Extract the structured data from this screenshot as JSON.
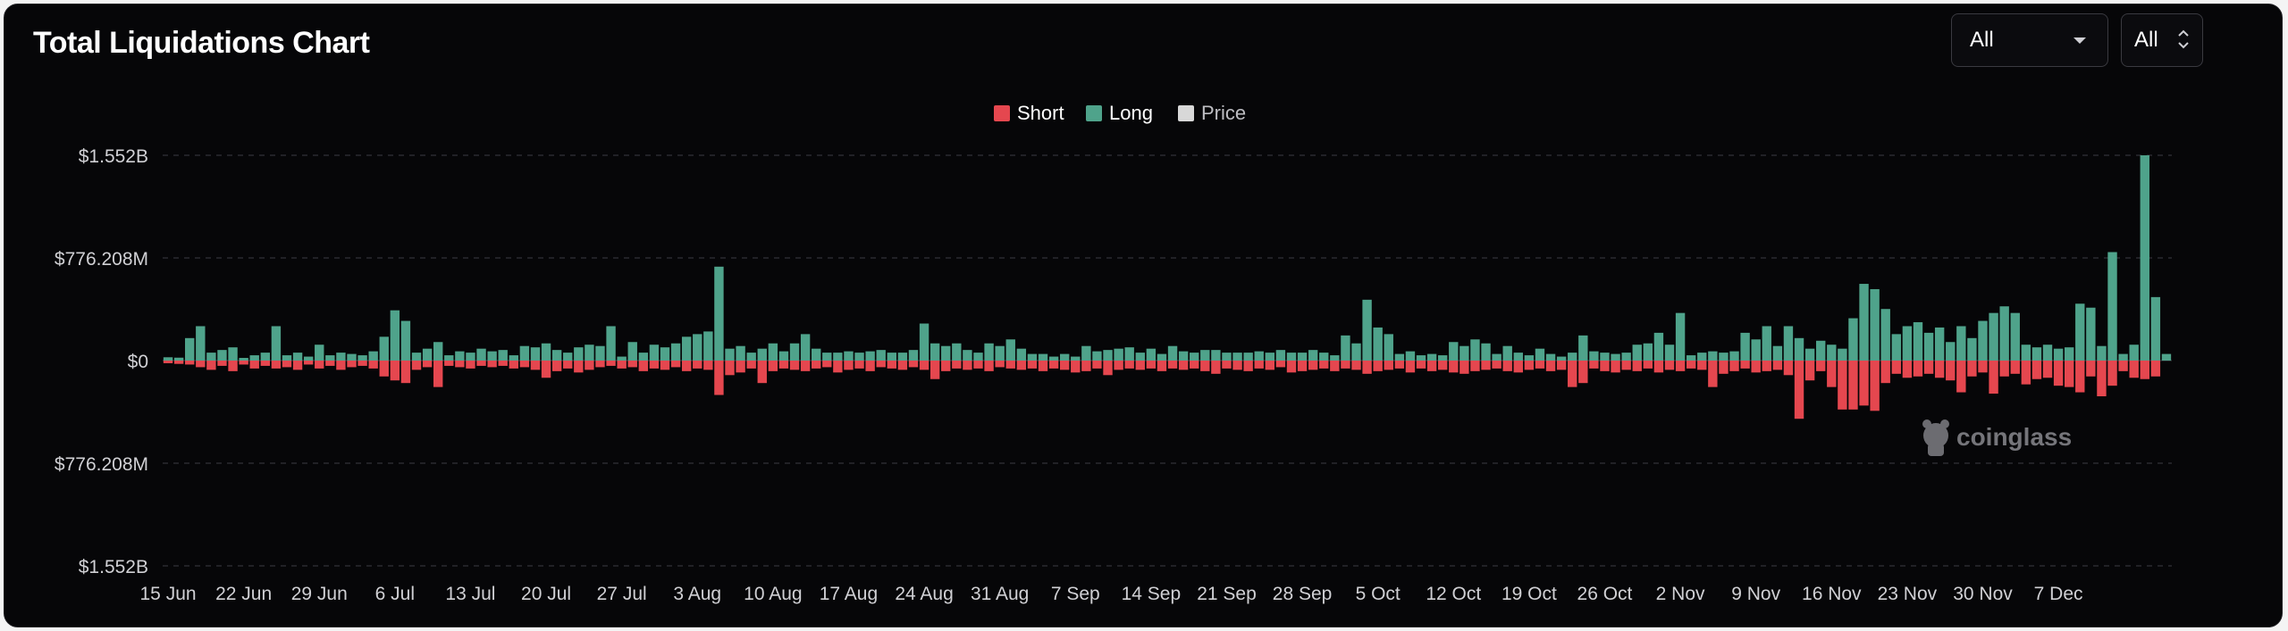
{
  "header": {
    "title": "Total Liquidations Chart"
  },
  "controls": {
    "range_select": {
      "value": "All",
      "icon": "chevron-down-icon"
    },
    "interval_select": {
      "value": "All",
      "icon": "up-down-chevron-icon"
    }
  },
  "watermark": {
    "text": "coinglass",
    "icon": "coinglass-logo-icon"
  },
  "colors": {
    "short": "#e5474f",
    "long": "#4fa38b",
    "price": "#d8d8d8",
    "background": "#060608"
  },
  "chart_data": {
    "type": "bar",
    "title": "Total Liquidations Chart",
    "legend": {
      "placement": "top-center",
      "entries": [
        "Short",
        "Long",
        "Price"
      ]
    },
    "grid": true,
    "y_unit": "USD",
    "ylim": [
      -1552000000,
      1552000000
    ],
    "y_tick_values": [
      1552000000,
      776208000,
      0,
      -776208000,
      -1552000000
    ],
    "y_tick_labels": [
      "$1.552B",
      "$776.208M",
      "$0",
      "$776.208M",
      "$1.552B"
    ],
    "x_tick_labels": [
      "15 Jun",
      "22 Jun",
      "29 Jun",
      "6 Jul",
      "13 Jul",
      "20 Jul",
      "27 Jul",
      "3 Aug",
      "10 Aug",
      "17 Aug",
      "24 Aug",
      "31 Aug",
      "7 Sep",
      "14 Sep",
      "21 Sep",
      "28 Sep",
      "5 Oct",
      "12 Oct",
      "19 Oct",
      "26 Oct",
      "2 Nov",
      "9 Nov",
      "16 Nov",
      "23 Nov",
      "30 Nov",
      "7 Dec"
    ],
    "x_start": "15 Jun",
    "interval": "1 day",
    "series": [
      {
        "name": "Long",
        "unit": "USD millions",
        "values": [
          25,
          22,
          170,
          260,
          60,
          80,
          100,
          20,
          40,
          60,
          260,
          40,
          60,
          30,
          120,
          40,
          60,
          50,
          40,
          70,
          180,
          380,
          300,
          60,
          90,
          140,
          40,
          70,
          60,
          90,
          70,
          80,
          40,
          110,
          100,
          130,
          80,
          60,
          100,
          120,
          110,
          260,
          30,
          140,
          60,
          120,
          100,
          130,
          180,
          200,
          220,
          710,
          90,
          110,
          60,
          90,
          130,
          70,
          130,
          200,
          90,
          60,
          60,
          70,
          60,
          70,
          80,
          60,
          60,
          80,
          280,
          130,
          110,
          130,
          80,
          60,
          130,
          110,
          160,
          90,
          50,
          50,
          30,
          50,
          30,
          110,
          70,
          80,
          90,
          100,
          60,
          90,
          50,
          110,
          70,
          60,
          80,
          80,
          60,
          60,
          60,
          70,
          60,
          80,
          60,
          60,
          80,
          60,
          40,
          190,
          130,
          460,
          250,
          200,
          50,
          70,
          40,
          50,
          40,
          140,
          110,
          160,
          130,
          50,
          110,
          60,
          40,
          90,
          50,
          30,
          60,
          190,
          70,
          60,
          50,
          60,
          120,
          130,
          210,
          120,
          360,
          40,
          60,
          70,
          60,
          70,
          210,
          160,
          260,
          110,
          260,
          170,
          90,
          150,
          120,
          90,
          320,
          580,
          540,
          390,
          200,
          260,
          290,
          210,
          250,
          140,
          260,
          170,
          300,
          360,
          410,
          360,
          120,
          100,
          120,
          90,
          100,
          430,
          400,
          110,
          820,
          50,
          120,
          1552,
          480,
          50
        ]
      },
      {
        "name": "Short",
        "unit": "USD millions",
        "values": [
          -20,
          -25,
          -30,
          -50,
          -70,
          -40,
          -80,
          -30,
          -60,
          -40,
          -60,
          -50,
          -70,
          -30,
          -60,
          -40,
          -70,
          -50,
          -40,
          -60,
          -120,
          -150,
          -170,
          -70,
          -50,
          -200,
          -40,
          -50,
          -60,
          -40,
          -50,
          -40,
          -60,
          -50,
          -70,
          -130,
          -80,
          -60,
          -90,
          -70,
          -50,
          -40,
          -60,
          -50,
          -80,
          -60,
          -70,
          -50,
          -80,
          -60,
          -70,
          -260,
          -110,
          -90,
          -60,
          -170,
          -80,
          -60,
          -70,
          -80,
          -60,
          -50,
          -90,
          -70,
          -60,
          -80,
          -50,
          -60,
          -70,
          -50,
          -70,
          -140,
          -80,
          -60,
          -70,
          -60,
          -80,
          -50,
          -60,
          -70,
          -60,
          -80,
          -60,
          -70,
          -90,
          -80,
          -60,
          -110,
          -70,
          -60,
          -70,
          -60,
          -80,
          -60,
          -70,
          -60,
          -80,
          -100,
          -60,
          -70,
          -80,
          -60,
          -70,
          -50,
          -90,
          -80,
          -70,
          -60,
          -80,
          -60,
          -70,
          -100,
          -80,
          -70,
          -60,
          -90,
          -60,
          -80,
          -70,
          -90,
          -100,
          -80,
          -70,
          -60,
          -80,
          -90,
          -70,
          -60,
          -80,
          -70,
          -200,
          -170,
          -60,
          -80,
          -90,
          -70,
          -80,
          -60,
          -90,
          -70,
          -80,
          -60,
          -70,
          -200,
          -100,
          -80,
          -60,
          -90,
          -80,
          -70,
          -110,
          -440,
          -150,
          -80,
          -200,
          -370,
          -370,
          -340,
          -380,
          -170,
          -100,
          -130,
          -120,
          -100,
          -130,
          -150,
          -240,
          -120,
          -90,
          -250,
          -120,
          -100,
          -180,
          -140,
          -130,
          -190,
          -200,
          -240,
          -120,
          -270,
          -190,
          -80,
          -130,
          -140,
          -120
        ]
      },
      {
        "name": "Price",
        "values": []
      }
    ]
  }
}
